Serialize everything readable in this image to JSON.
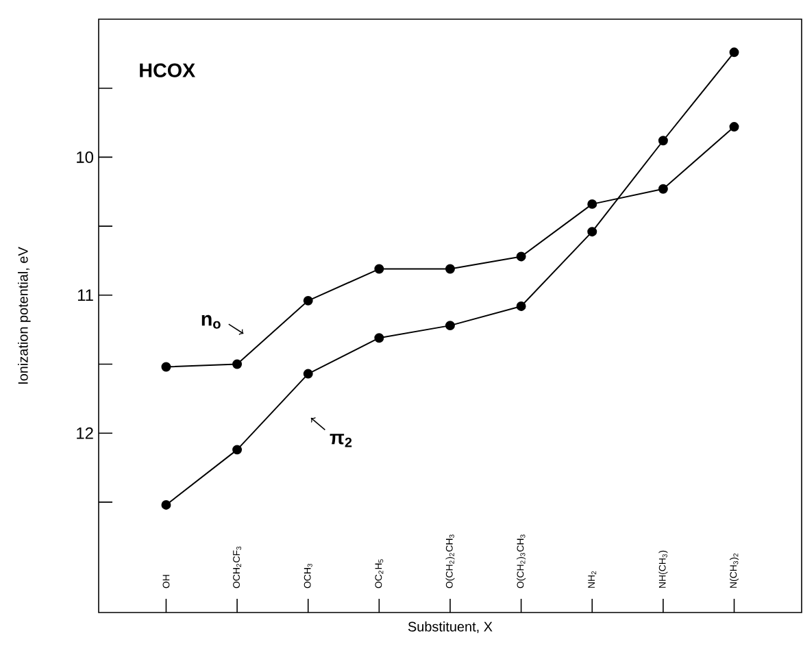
{
  "chart_data": {
    "type": "line",
    "title": "HCOX",
    "xlabel": "Substituent, X",
    "ylabel": "Ionization potential, eV",
    "categories": [
      "OH",
      "OCH$_{2}$CF$_{3}$",
      "OCH$_{3}$",
      "OC$_{2}$H$_{5}$",
      "O(CH$_{2}$)$_{2}$CH$_{3}$",
      "O(CH$_{2}$)$_{3}$CH$_{3}$",
      "NH$_{2}$",
      "NH(CH$_{3}$)",
      "N(CH$_{3}$)$_{2}$"
    ],
    "series": [
      {
        "name": "n$_{o}$",
        "color": "#000000",
        "values": [
          11.52,
          11.5,
          11.04,
          10.81,
          10.81,
          10.72,
          10.34,
          10.23,
          9.78
        ]
      },
      {
        "name": "π$_{2}$",
        "color": "#000000",
        "values": [
          12.52,
          12.12,
          11.57,
          11.31,
          11.22,
          11.08,
          10.54,
          9.88,
          9.24
        ]
      }
    ],
    "ylim": [
      13.3,
      9.0
    ],
    "yticks": [
      {
        "value": 9.5,
        "label": null
      },
      10,
      {
        "value": 10.5,
        "label": null
      },
      11,
      {
        "value": 11.5,
        "label": null
      },
      12,
      {
        "value": 12.5,
        "label": null
      }
    ],
    "marker": "circle",
    "line_style": "solid",
    "grid": false
  }
}
